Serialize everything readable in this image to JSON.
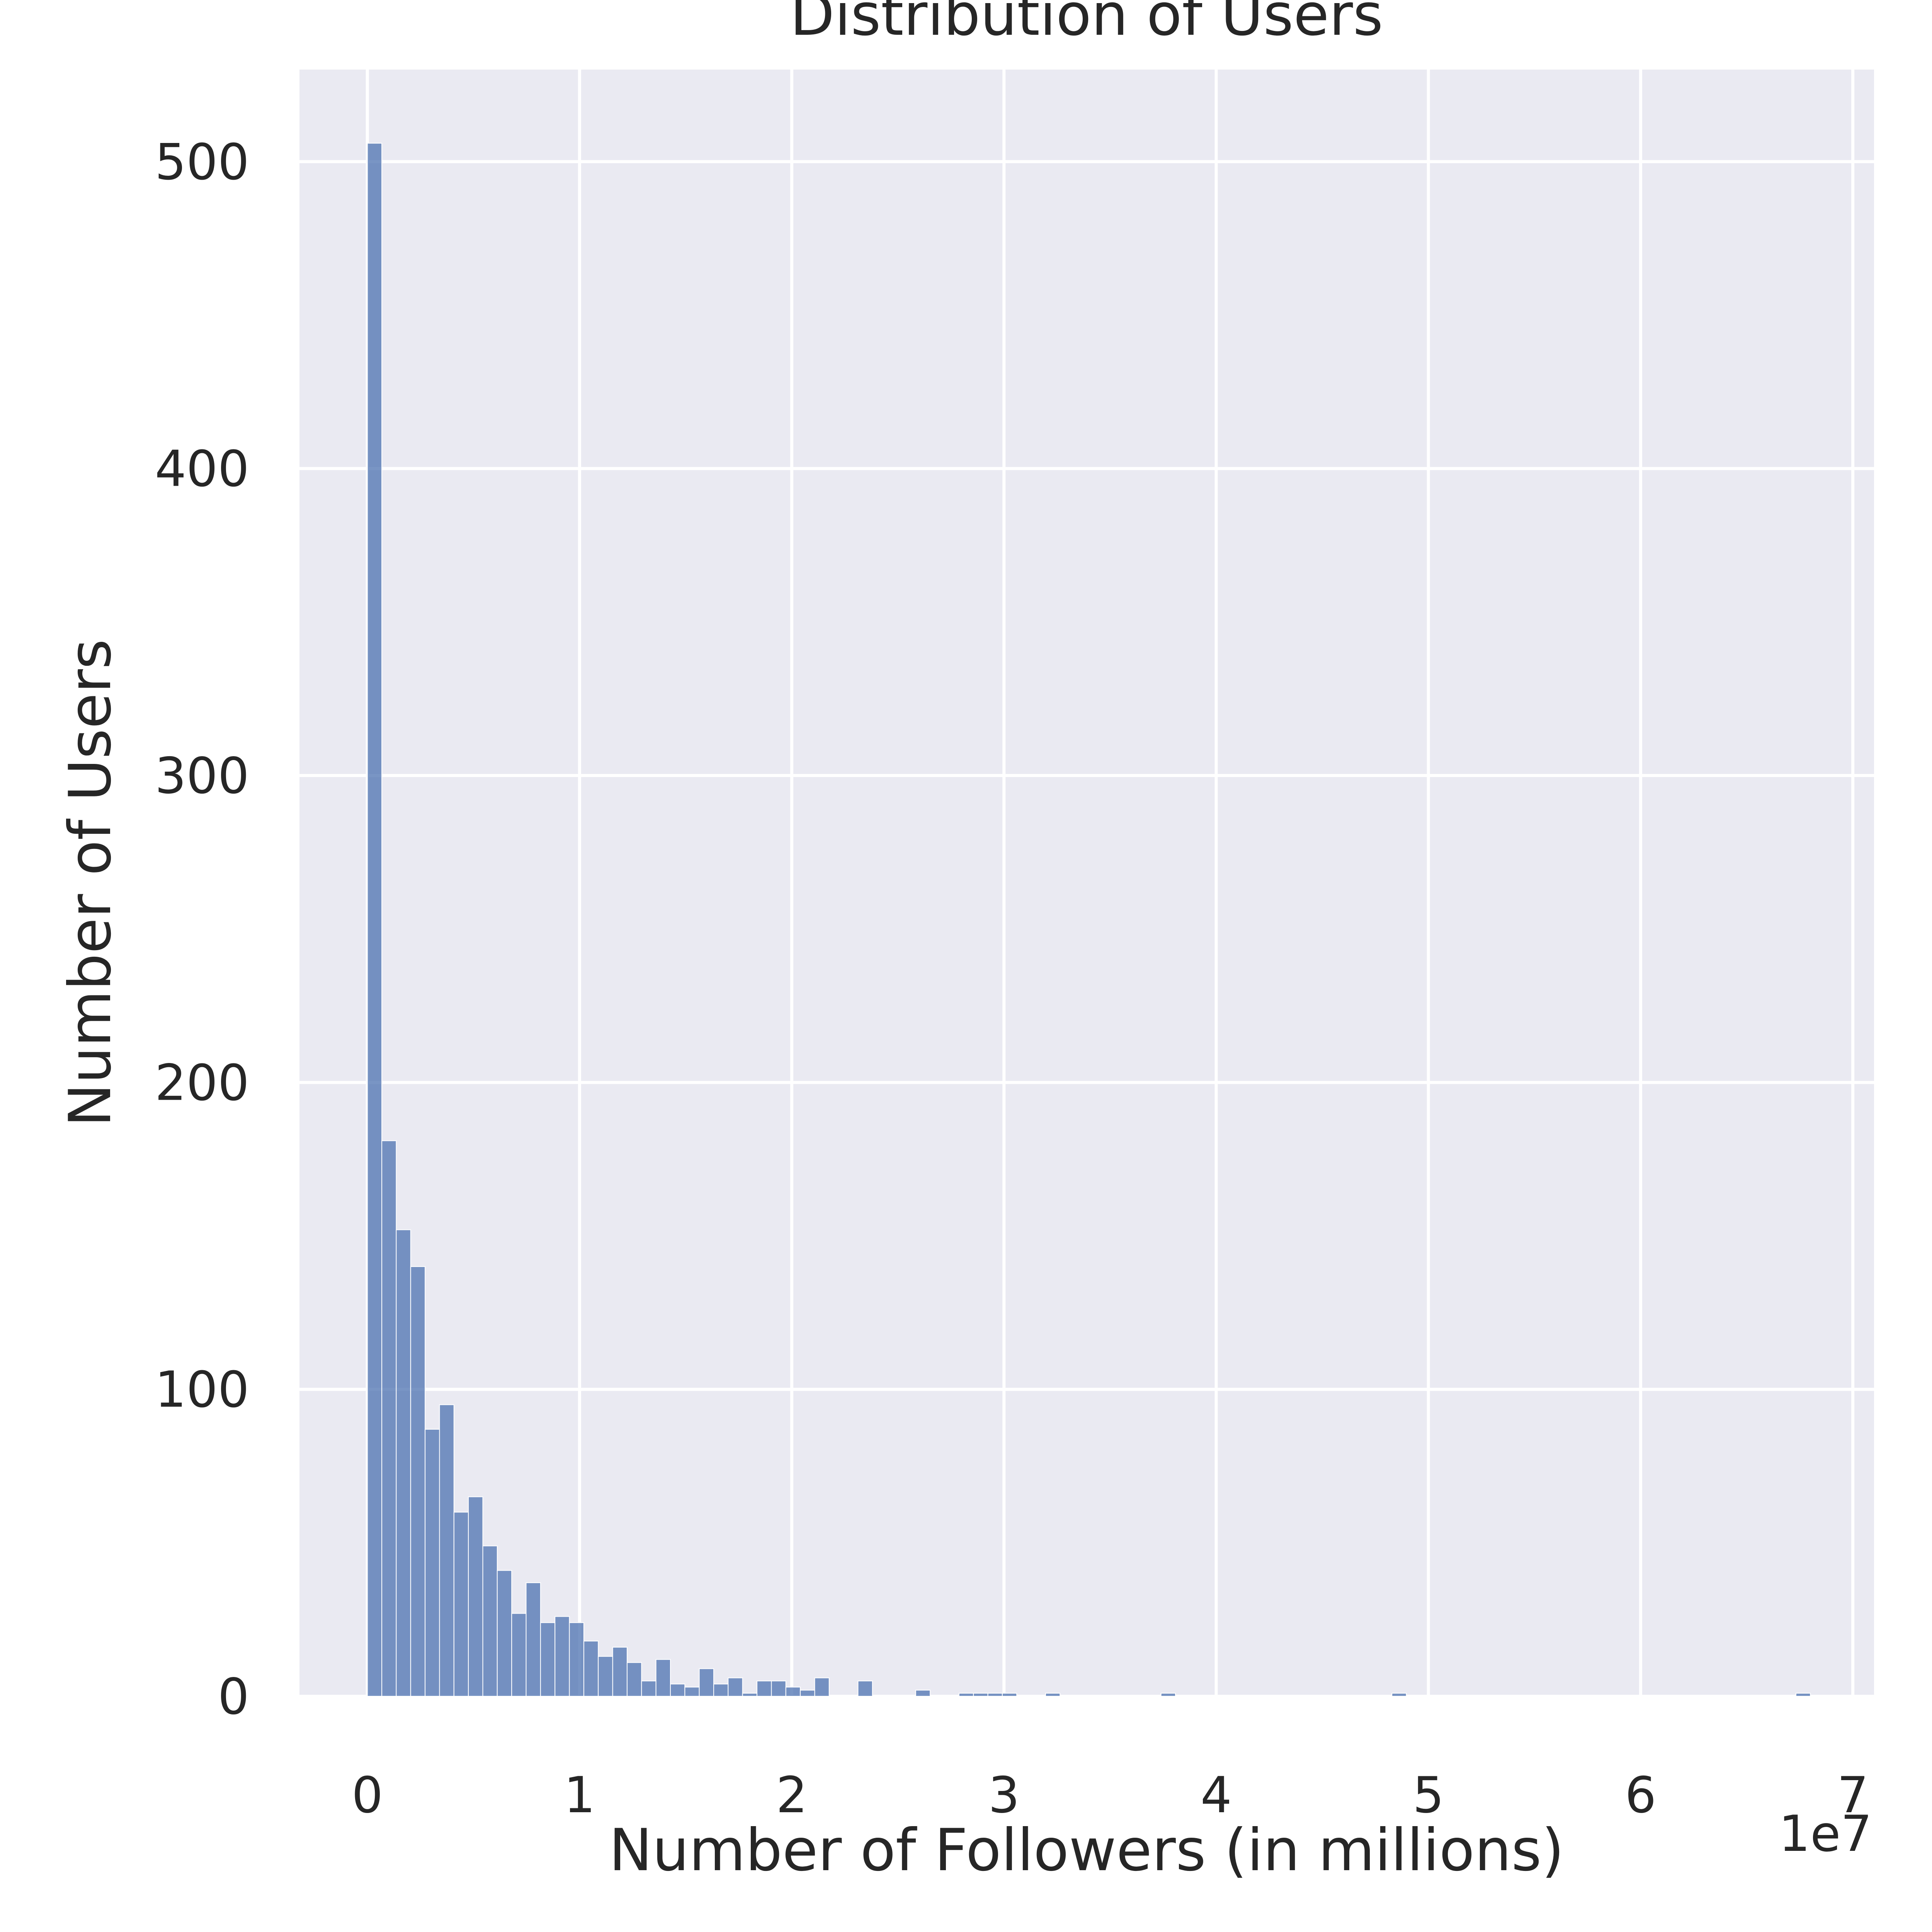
{
  "chart_data": {
    "type": "bar",
    "title": "Distribution of Users",
    "xlabel": "Number of Followers (in millions)",
    "ylabel": "Number of Users",
    "x_offset_label": "1e7",
    "xlim": [
      -0.32,
      7.1
    ],
    "ylim": [
      0,
      530
    ],
    "x_ticks": [
      0,
      1,
      2,
      3,
      4,
      5,
      6,
      7
    ],
    "y_ticks": [
      0,
      100,
      200,
      300,
      400,
      500
    ],
    "grid": true,
    "bin_width": 0.068,
    "bin_start": 0.0,
    "values": [
      506,
      181,
      152,
      140,
      87,
      95,
      60,
      65,
      49,
      41,
      27,
      37,
      24,
      26,
      24,
      18,
      13,
      16,
      11,
      5,
      12,
      4,
      3,
      9,
      4,
      6,
      1,
      5,
      5,
      3,
      2,
      6,
      0,
      0,
      5,
      0,
      0,
      0,
      2,
      0,
      0,
      1,
      1,
      1,
      1,
      0,
      0,
      1,
      0,
      0,
      0,
      0,
      0,
      0,
      0,
      1,
      0,
      0,
      0,
      0,
      0,
      0,
      0,
      0,
      0,
      0,
      0,
      0,
      0,
      0,
      0,
      1,
      0,
      0,
      0,
      0,
      0,
      0,
      0,
      0,
      0,
      0,
      0,
      0,
      0,
      0,
      0,
      0,
      0,
      0,
      0,
      0,
      0,
      0,
      0,
      0,
      0,
      0,
      0,
      1
    ]
  }
}
